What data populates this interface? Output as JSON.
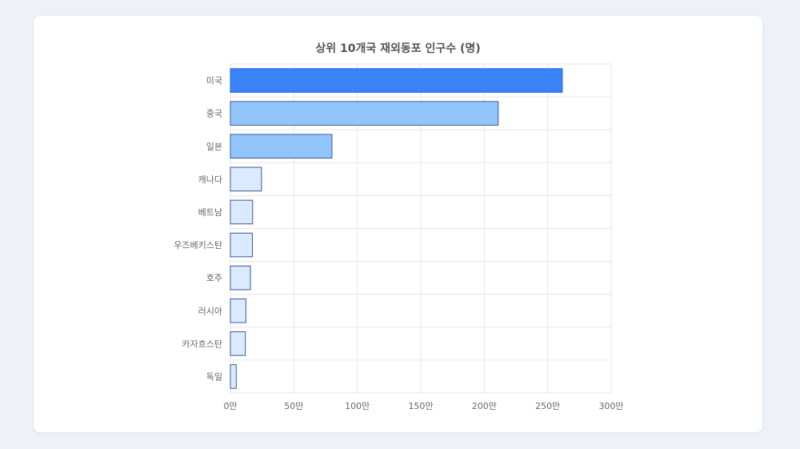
{
  "chart_data": {
    "type": "bar",
    "orientation": "horizontal",
    "title": "상위 10개국 재외동포 인구수 (명)",
    "xlabel": "",
    "ylabel": "",
    "categories": [
      "미국",
      "중국",
      "일본",
      "캐나다",
      "베트남",
      "우즈베키스탄",
      "호주",
      "러시아",
      "카자흐스탄",
      "독일"
    ],
    "values": [
      2615000,
      2110000,
      800000,
      245000,
      175000,
      173000,
      158000,
      122000,
      118000,
      46000
    ],
    "xlim": [
      0,
      3000000
    ],
    "xticks": [
      0,
      500000,
      1000000,
      1500000,
      2000000,
      2500000,
      3000000
    ],
    "xtick_labels": [
      "0만",
      "50만",
      "100만",
      "150만",
      "200만",
      "250만",
      "300만"
    ],
    "grid": true,
    "legend": "none",
    "colors": {
      "top1": "#3b82f6",
      "top2_3": "#93c5fd",
      "rest": "#dbeafe",
      "bar_border": "#3b5998",
      "top1_border": "#2563eb",
      "grid": "#e6e6e6"
    }
  }
}
